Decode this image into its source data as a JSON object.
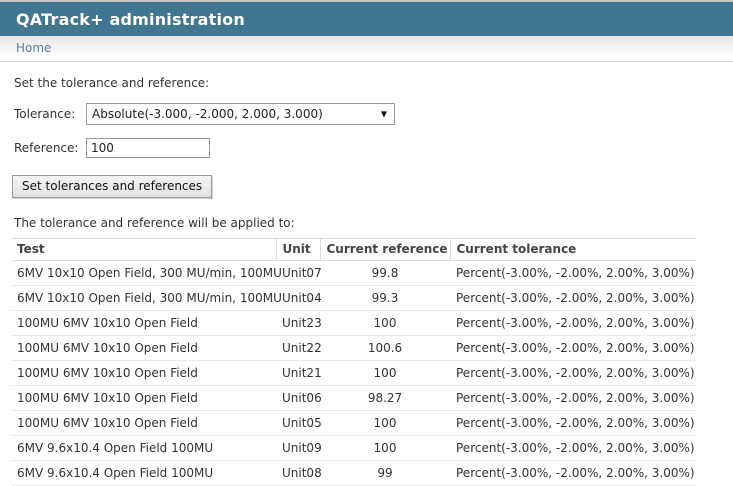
{
  "header": {
    "title": "QATrack+ administration"
  },
  "breadcrumb": {
    "home": "Home"
  },
  "form": {
    "intro": "Set the tolerance and reference:",
    "tolerance_label": "Tolerance:",
    "tolerance_value": "Absolute(-3.000, -2.000, 2.000, 3.000)",
    "reference_label": "Reference:",
    "reference_value": "100",
    "submit_label": "Set tolerances and references"
  },
  "apply_section": {
    "intro": "The tolerance and reference will be applied to:",
    "table": {
      "columns": [
        "Test",
        "Unit",
        "Current reference",
        "Current tolerance"
      ],
      "rows": [
        {
          "test": "6MV 10x10 Open Field, 300 MU/min, 100MU",
          "unit": "Unit07",
          "current_reference": "99.8",
          "current_tolerance": "Percent(-3.00%, -2.00%, 2.00%, 3.00%)"
        },
        {
          "test": "6MV 10x10 Open Field, 300 MU/min, 100MU",
          "unit": "Unit04",
          "current_reference": "99.3",
          "current_tolerance": "Percent(-3.00%, -2.00%, 2.00%, 3.00%)"
        },
        {
          "test": "100MU 6MV 10x10 Open Field",
          "unit": "Unit23",
          "current_reference": "100",
          "current_tolerance": "Percent(-3.00%, -2.00%, 2.00%, 3.00%)"
        },
        {
          "test": "100MU 6MV 10x10 Open Field",
          "unit": "Unit22",
          "current_reference": "100.6",
          "current_tolerance": "Percent(-3.00%, -2.00%, 2.00%, 3.00%)"
        },
        {
          "test": "100MU 6MV 10x10 Open Field",
          "unit": "Unit21",
          "current_reference": "100",
          "current_tolerance": "Percent(-3.00%, -2.00%, 2.00%, 3.00%)"
        },
        {
          "test": "100MU 6MV 10x10 Open Field",
          "unit": "Unit06",
          "current_reference": "98.27",
          "current_tolerance": "Percent(-3.00%, -2.00%, 2.00%, 3.00%)"
        },
        {
          "test": "100MU 6MV 10x10 Open Field",
          "unit": "Unit05",
          "current_reference": "100",
          "current_tolerance": "Percent(-3.00%, -2.00%, 2.00%, 3.00%)"
        },
        {
          "test": "6MV 9.6x10.4 Open Field 100MU",
          "unit": "Unit09",
          "current_reference": "100",
          "current_tolerance": "Percent(-3.00%, -2.00%, 2.00%, 3.00%)"
        },
        {
          "test": "6MV 9.6x10.4 Open Field 100MU",
          "unit": "Unit08",
          "current_reference": "99",
          "current_tolerance": "Percent(-3.00%, -2.00%, 2.00%, 3.00%)"
        }
      ]
    }
  },
  "icons": {
    "select_arrow": "▼"
  },
  "colors": {
    "header_bg": "#417690",
    "header_text": "#ffffff",
    "breadcrumb_link": "#5b80b2",
    "table_border": "#dcdcdc",
    "row_border": "#e8e8e8"
  }
}
